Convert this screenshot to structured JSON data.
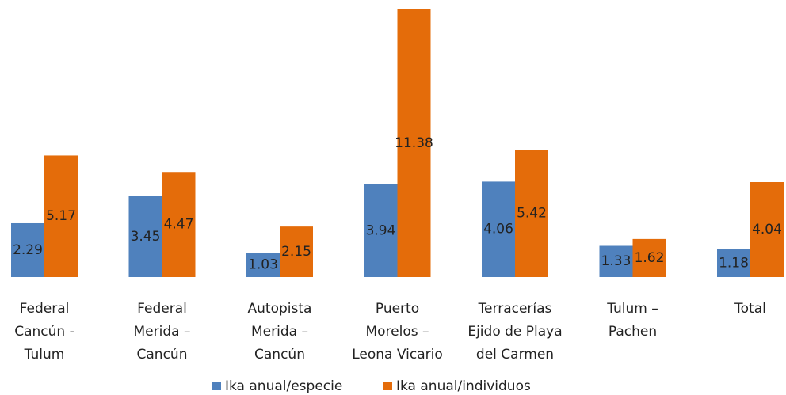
{
  "chart_data": {
    "type": "bar",
    "categories": [
      [
        "Federal",
        "Cancún -",
        "Tulum"
      ],
      [
        "Federal",
        "Merida –",
        "Cancún"
      ],
      [
        "Autopista",
        "Merida –",
        "Cancún"
      ],
      [
        "Puerto",
        "Morelos –",
        "Leona Vicario"
      ],
      [
        "Terracerías",
        "Ejido de Playa",
        "del Carmen"
      ],
      [
        "Tulum –",
        "Pachen"
      ],
      [
        "Total"
      ]
    ],
    "series": [
      {
        "name": "Ika anual/especie",
        "color": "#4f81bd",
        "values": [
          2.29,
          3.45,
          1.03,
          3.94,
          4.06,
          1.33,
          1.18
        ]
      },
      {
        "name": "Ika anual/individuos",
        "color": "#e46c0a",
        "values": [
          5.17,
          4.47,
          2.15,
          11.38,
          5.42,
          1.62,
          4.04
        ]
      }
    ]
  }
}
